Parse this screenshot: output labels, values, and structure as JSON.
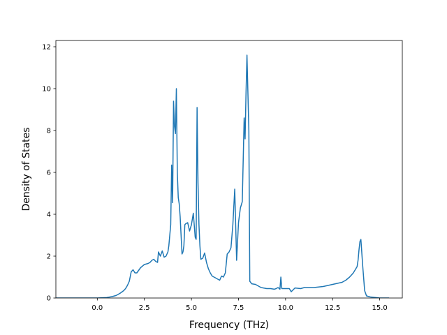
{
  "chart_data": {
    "type": "line",
    "title": "",
    "xlabel": "Frequency (THz)",
    "ylabel": "Density of States",
    "xlim": [
      -2.2,
      16.2
    ],
    "ylim": [
      0,
      12.3
    ],
    "xticks": [
      0.0,
      2.5,
      5.0,
      7.5,
      10.0,
      12.5,
      15.0
    ],
    "xtick_labels": [
      "0.0",
      "2.5",
      "5.0",
      "7.5",
      "10.0",
      "12.5",
      "15.0"
    ],
    "yticks": [
      0,
      2,
      4,
      6,
      8,
      10,
      12
    ],
    "ytick_labels": [
      "0",
      "2",
      "4",
      "6",
      "8",
      "10",
      "12"
    ],
    "grid": false,
    "series": [
      {
        "color": "#1f77b4",
        "x": [
          -2.3,
          -1.5,
          0.0,
          0.5,
          0.8,
          1.0,
          1.2,
          1.4,
          1.5,
          1.6,
          1.7,
          1.8,
          1.9,
          2.0,
          2.1,
          2.3,
          2.5,
          2.7,
          2.8,
          2.9,
          3.0,
          3.1,
          3.2,
          3.25,
          3.35,
          3.45,
          3.55,
          3.65,
          3.75,
          3.8,
          3.85,
          3.9,
          3.95,
          4.0,
          4.05,
          4.1,
          4.15,
          4.2,
          4.25,
          4.3,
          4.35,
          4.4,
          4.5,
          4.55,
          4.6,
          4.65,
          4.7,
          4.8,
          4.9,
          5.0,
          5.1,
          5.2,
          5.25,
          5.3,
          5.35,
          5.4,
          5.45,
          5.5,
          5.6,
          5.7,
          5.8,
          5.9,
          6.0,
          6.1,
          6.2,
          6.3,
          6.4,
          6.5,
          6.6,
          6.7,
          6.8,
          6.9,
          7.0,
          7.1,
          7.2,
          7.3,
          7.4,
          7.5,
          7.6,
          7.7,
          7.8,
          7.85,
          7.9,
          7.95,
          8.0,
          8.05,
          8.1,
          8.2,
          8.4,
          8.5,
          8.7,
          9.0,
          9.2,
          9.4,
          9.5,
          9.6,
          9.7,
          9.75,
          9.8,
          10.0,
          10.2,
          10.3,
          10.5,
          10.8,
          11.0,
          11.5,
          12.0,
          12.5,
          13.0,
          13.2,
          13.4,
          13.6,
          13.7,
          13.8,
          13.85,
          13.9,
          13.95,
          14.0,
          14.1,
          14.2,
          14.3,
          14.5,
          15.0,
          15.5
        ],
        "y": [
          0,
          0,
          0,
          0.02,
          0.07,
          0.12,
          0.22,
          0.35,
          0.45,
          0.6,
          0.8,
          1.25,
          1.35,
          1.2,
          1.2,
          1.45,
          1.6,
          1.65,
          1.7,
          1.8,
          1.85,
          1.75,
          1.7,
          2.2,
          2.0,
          2.25,
          1.95,
          2.0,
          2.2,
          2.5,
          3.0,
          3.5,
          6.35,
          4.55,
          9.4,
          8.2,
          7.85,
          10.0,
          6.0,
          4.8,
          4.5,
          3.9,
          2.1,
          2.2,
          2.5,
          3.5,
          3.55,
          3.6,
          3.2,
          3.5,
          4.05,
          2.9,
          2.8,
          9.1,
          5.5,
          3.5,
          2.5,
          1.85,
          1.9,
          2.15,
          1.7,
          1.4,
          1.2,
          1.05,
          1.0,
          0.95,
          0.9,
          0.85,
          1.05,
          1.0,
          1.2,
          2.1,
          2.2,
          2.4,
          3.5,
          5.2,
          1.8,
          3.6,
          4.3,
          4.6,
          8.6,
          7.6,
          9.8,
          11.6,
          9.8,
          8.0,
          0.8,
          0.68,
          0.65,
          0.6,
          0.5,
          0.45,
          0.45,
          0.42,
          0.45,
          0.5,
          0.42,
          1.0,
          0.45,
          0.45,
          0.45,
          0.3,
          0.48,
          0.45,
          0.5,
          0.5,
          0.55,
          0.65,
          0.75,
          0.85,
          1.0,
          1.2,
          1.35,
          1.5,
          1.8,
          2.3,
          2.7,
          2.8,
          1.5,
          0.35,
          0.1,
          0.05,
          0,
          0
        ],
        "x_range_note": ""
      }
    ]
  }
}
